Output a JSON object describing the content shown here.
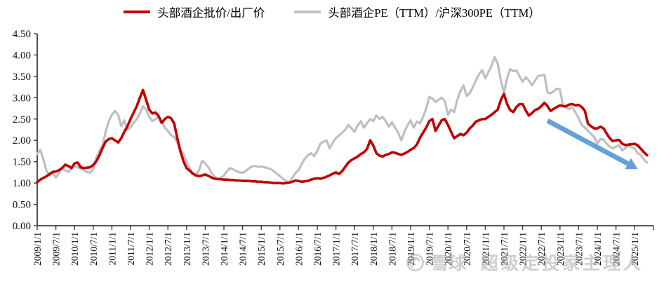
{
  "legend": [
    {
      "label": "头部酒企批价/出厂价",
      "color": "#C00000"
    },
    {
      "label": "头部酒企PE（TTM）/沪深300PE（TTM）",
      "color": "#BFBFBF"
    }
  ],
  "watermark": {
    "logo": "snowball-icon",
    "brand": "雪球",
    "subtitle": "超级定投家主理人"
  },
  "chart_data": {
    "type": "line",
    "title": "",
    "axis_color": "#3f3f3f",
    "y_axis": {
      "min": 0,
      "max": 4.5,
      "step": 0.5,
      "tick_labels": [
        "0.00",
        "0.50",
        "1.00",
        "1.50",
        "2.00",
        "2.50",
        "3.00",
        "3.50",
        "4.00",
        "4.50"
      ]
    },
    "x_axis": {
      "months_per_tick": 6,
      "tick_labels": [
        "2009/1/1",
        "2009/7/1",
        "2010/1/1",
        "2010/7/1",
        "2011/1/1",
        "2011/7/1",
        "2012/1/1",
        "2012/7/1",
        "2013/1/1",
        "2013/7/1",
        "2014/1/1",
        "2014/7/1",
        "2015/1/1",
        "2015/7/1",
        "2016/1/1",
        "2016/7/1",
        "2017/1/1",
        "2017/7/1",
        "2018/1/1",
        "2018/7/1",
        "2019/1/1",
        "2019/7/1",
        "2020/1/1",
        "2020/7/1",
        "2021/1/1",
        "2021/7/1",
        "2022/1/1",
        "2022/7/1",
        "2023/1/1",
        "2023/7/1",
        "2024/1/1",
        "2024/7/1",
        "2025/1/1"
      ]
    },
    "start_month": "2009/1",
    "end_month": "2025/5",
    "grid": false,
    "legend_position": "top-center",
    "series": [
      {
        "name": "头部酒企批价/出厂价",
        "color": "#C00000",
        "width": 3.6,
        "values": [
          1.02,
          1.08,
          1.12,
          1.16,
          1.21,
          1.26,
          1.27,
          1.3,
          1.35,
          1.43,
          1.4,
          1.35,
          1.46,
          1.48,
          1.37,
          1.35,
          1.36,
          1.37,
          1.42,
          1.51,
          1.65,
          1.82,
          1.97,
          2.03,
          2.05,
          2.0,
          1.95,
          2.05,
          2.2,
          2.33,
          2.5,
          2.65,
          2.8,
          3.0,
          3.18,
          2.95,
          2.72,
          2.63,
          2.65,
          2.57,
          2.41,
          2.5,
          2.55,
          2.52,
          2.4,
          2.06,
          1.75,
          1.51,
          1.35,
          1.29,
          1.22,
          1.18,
          1.16,
          1.18,
          1.2,
          1.17,
          1.13,
          1.1,
          1.09,
          1.09,
          1.08,
          1.08,
          1.07,
          1.07,
          1.06,
          1.06,
          1.05,
          1.05,
          1.05,
          1.04,
          1.04,
          1.03,
          1.03,
          1.02,
          1.02,
          1.01,
          1.0,
          1.0,
          1.0,
          0.99,
          1.0,
          1.01,
          1.03,
          1.06,
          1.05,
          1.03,
          1.04,
          1.05,
          1.08,
          1.1,
          1.11,
          1.1,
          1.12,
          1.15,
          1.18,
          1.22,
          1.25,
          1.21,
          1.28,
          1.38,
          1.48,
          1.54,
          1.58,
          1.62,
          1.68,
          1.72,
          1.8,
          2.0,
          1.88,
          1.7,
          1.64,
          1.62,
          1.66,
          1.68,
          1.72,
          1.71,
          1.68,
          1.66,
          1.69,
          1.73,
          1.78,
          1.82,
          1.9,
          2.06,
          2.18,
          2.3,
          2.45,
          2.5,
          2.22,
          2.35,
          2.47,
          2.5,
          2.36,
          2.2,
          2.05,
          2.1,
          2.15,
          2.12,
          2.18,
          2.28,
          2.35,
          2.44,
          2.47,
          2.5,
          2.5,
          2.55,
          2.6,
          2.66,
          2.72,
          2.95,
          3.09,
          2.85,
          2.71,
          2.66,
          2.78,
          2.85,
          2.85,
          2.7,
          2.58,
          2.64,
          2.71,
          2.74,
          2.8,
          2.88,
          2.8,
          2.69,
          2.74,
          2.78,
          2.82,
          2.8,
          2.8,
          2.84,
          2.85,
          2.82,
          2.83,
          2.78,
          2.69,
          2.39,
          2.33,
          2.28,
          2.28,
          2.32,
          2.28,
          2.16,
          2.05,
          1.98,
          2.0,
          2.01,
          1.92,
          1.89,
          1.9,
          1.91,
          1.92,
          1.88,
          1.8,
          1.72,
          1.65
        ]
      },
      {
        "name": "头部酒企PE（TTM）/沪深300PE（TTM）",
        "color": "#BFBFBF",
        "width": 3.2,
        "values": [
          1.68,
          1.78,
          1.55,
          1.28,
          1.18,
          1.24,
          1.13,
          1.22,
          1.37,
          1.3,
          1.26,
          1.33,
          1.4,
          1.37,
          1.33,
          1.3,
          1.26,
          1.24,
          1.33,
          1.59,
          1.75,
          1.89,
          2.2,
          2.45,
          2.6,
          2.69,
          2.6,
          2.33,
          2.47,
          2.25,
          2.3,
          2.41,
          2.5,
          2.63,
          2.8,
          2.72,
          2.55,
          2.45,
          2.5,
          2.55,
          2.45,
          2.3,
          2.22,
          2.12,
          2.08,
          1.95,
          1.78,
          1.67,
          1.5,
          1.35,
          1.22,
          1.18,
          1.3,
          1.52,
          1.46,
          1.37,
          1.24,
          1.15,
          1.1,
          1.12,
          1.18,
          1.28,
          1.35,
          1.32,
          1.28,
          1.25,
          1.24,
          1.28,
          1.34,
          1.39,
          1.4,
          1.38,
          1.39,
          1.37,
          1.35,
          1.33,
          1.28,
          1.22,
          1.16,
          1.1,
          1.04,
          1.02,
          1.12,
          1.24,
          1.3,
          1.45,
          1.57,
          1.65,
          1.7,
          1.63,
          1.75,
          1.92,
          1.97,
          2.0,
          1.81,
          1.95,
          2.05,
          2.11,
          2.18,
          2.25,
          2.36,
          2.28,
          2.2,
          2.35,
          2.45,
          2.3,
          2.4,
          2.5,
          2.45,
          2.58,
          2.5,
          2.55,
          2.45,
          2.32,
          2.42,
          2.3,
          2.18,
          2.0,
          2.2,
          2.35,
          2.47,
          2.3,
          2.44,
          2.4,
          2.55,
          2.75,
          3.02,
          2.98,
          2.9,
          2.95,
          3.0,
          2.92,
          2.6,
          2.72,
          2.66,
          2.95,
          3.15,
          3.29,
          3.04,
          3.1,
          3.25,
          3.4,
          3.55,
          3.65,
          3.45,
          3.6,
          3.75,
          3.95,
          3.8,
          3.4,
          3.12,
          3.45,
          3.67,
          3.62,
          3.64,
          3.5,
          3.37,
          3.48,
          3.4,
          3.29,
          3.4,
          3.51,
          3.52,
          3.54,
          3.12,
          3.1,
          3.15,
          3.21,
          3.19,
          2.8,
          2.76,
          2.74,
          2.77,
          2.65,
          2.52,
          2.36,
          2.3,
          2.22,
          2.15,
          2.08,
          1.92,
          2.03,
          2.02,
          1.92,
          1.85,
          1.81,
          1.85,
          1.89,
          1.76,
          1.82,
          1.87,
          1.84,
          1.81,
          1.7,
          1.65,
          1.55,
          1.48
        ]
      }
    ],
    "annotations": [
      {
        "type": "arrow",
        "color": "#63A2D8",
        "from_month": "2022/9",
        "from_value": 2.46,
        "to_month": "2025/2",
        "to_value": 1.33
      }
    ]
  }
}
